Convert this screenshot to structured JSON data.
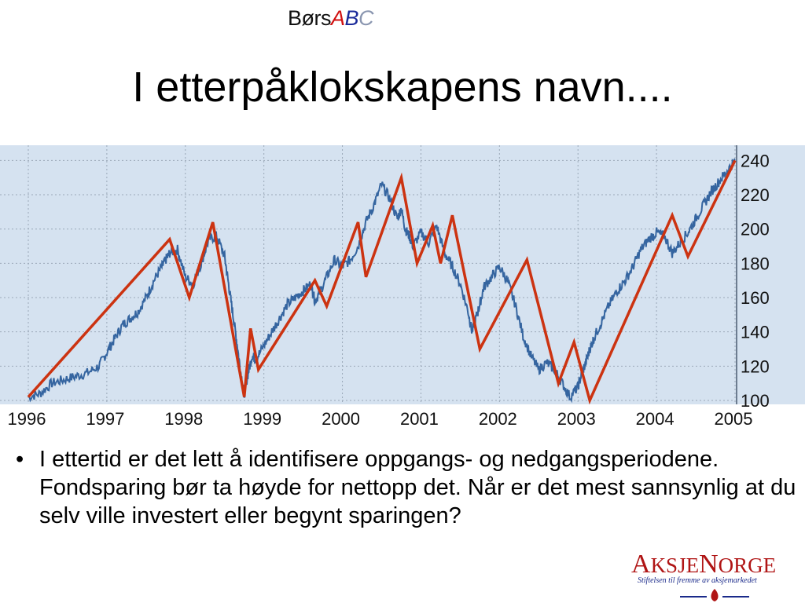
{
  "header": {
    "brand_prefix": "Børs",
    "brand_a": "A",
    "brand_b": "B",
    "brand_c": "C",
    "title": "I etterpåklokskapens navn...."
  },
  "bullet": {
    "text": "I ettertid er det lett å identifisere oppgangs- og nedgangsperiodene. Fondsparing bør ta høyde for nettopp det. Når er det mest sannsynlig at du selv ville investert eller begynt sparingen?"
  },
  "logo": {
    "word_big1": "A",
    "word_small1": "KSJE",
    "word_big2": "N",
    "word_small2": "ORGE",
    "tagline": "Stiftelsen til fremme av aksjemarkedet"
  },
  "colors": {
    "plot_background": "#d5e2f0",
    "price_line": "#3565a0",
    "trend_line": "#cc3311",
    "grid": "#9aa8b8"
  },
  "chart_data": {
    "type": "line",
    "title": "",
    "xlabel": "",
    "ylabel": "",
    "x_ticks": [
      "1996",
      "1997",
      "1998",
      "1999",
      "2000",
      "2001",
      "2002",
      "2003",
      "2004",
      "2005"
    ],
    "y_ticks": [
      100,
      120,
      140,
      160,
      180,
      200,
      220,
      240
    ],
    "xlim": [
      1996.0,
      2005.0
    ],
    "ylim": [
      100,
      242
    ],
    "y_axis_side": "right",
    "grid": true,
    "series": [
      {
        "style": "price",
        "x": [
          1996.0,
          1996.15,
          1996.3,
          1996.45,
          1996.6,
          1996.75,
          1996.9,
          1997.0,
          1997.1,
          1997.2,
          1997.3,
          1997.4,
          1997.5,
          1997.6,
          1997.7,
          1997.75,
          1997.8,
          1997.9,
          1998.0,
          1998.1,
          1998.2,
          1998.3,
          1998.4,
          1998.5,
          1998.55,
          1998.6,
          1998.65,
          1998.7,
          1998.75,
          1998.8,
          1998.85,
          1998.9,
          1999.0,
          1999.1,
          1999.2,
          1999.3,
          1999.4,
          1999.5,
          1999.6,
          1999.65,
          1999.7,
          1999.8,
          1999.9,
          2000.0,
          2000.1,
          2000.2,
          2000.3,
          2000.4,
          2000.5,
          2000.6,
          2000.7,
          2000.75,
          2000.8,
          2000.85,
          2000.9,
          2001.0,
          2001.1,
          2001.2,
          2001.3,
          2001.4,
          2001.5,
          2001.6,
          2001.65,
          2001.7,
          2001.75,
          2001.8,
          2001.9,
          2002.0,
          2002.1,
          2002.2,
          2002.3,
          2002.4,
          2002.5,
          2002.6,
          2002.7,
          2002.8,
          2002.9,
          2003.0,
          2003.05,
          2003.1,
          2003.15,
          2003.2,
          2003.3,
          2003.4,
          2003.5,
          2003.6,
          2003.7,
          2003.8,
          2003.9,
          2004.0,
          2004.1,
          2004.2,
          2004.3,
          2004.4,
          2004.5,
          2004.6,
          2004.7,
          2004.8,
          2004.9,
          2005.0
        ],
        "y": [
          102,
          104,
          110,
          112,
          114,
          116,
          120,
          128,
          136,
          144,
          148,
          152,
          160,
          170,
          178,
          182,
          186,
          188,
          172,
          168,
          180,
          194,
          196,
          184,
          168,
          152,
          136,
          118,
          104,
          116,
          126,
          124,
          132,
          140,
          148,
          156,
          160,
          164,
          168,
          158,
          162,
          172,
          182,
          178,
          182,
          190,
          204,
          214,
          226,
          218,
          206,
          212,
          200,
          196,
          190,
          198,
          192,
          202,
          186,
          178,
          168,
          152,
          140,
          148,
          156,
          166,
          172,
          178,
          170,
          156,
          138,
          126,
          118,
          122,
          118,
          110,
          102,
          108,
          116,
          122,
          130,
          136,
          146,
          156,
          164,
          170,
          178,
          188,
          194,
          198,
          196,
          186,
          192,
          198,
          206,
          214,
          222,
          228,
          234,
          240
        ]
      },
      {
        "style": "trend",
        "x": [
          1996.0,
          1997.8,
          1998.05,
          1998.35,
          1998.75,
          1998.83,
          1998.93,
          1999.65,
          1999.8,
          2000.2,
          2000.3,
          2000.75,
          2000.95,
          2001.15,
          2001.25,
          2001.4,
          2001.75,
          2002.35,
          2002.75,
          2002.95,
          2003.15,
          2004.2,
          2004.4,
          2005.0
        ],
        "y": [
          102,
          194,
          160,
          204,
          102,
          142,
          118,
          170,
          155,
          204,
          172,
          230,
          180,
          202,
          180,
          208,
          130,
          182,
          110,
          134,
          100,
          208,
          184,
          240
        ]
      }
    ]
  }
}
